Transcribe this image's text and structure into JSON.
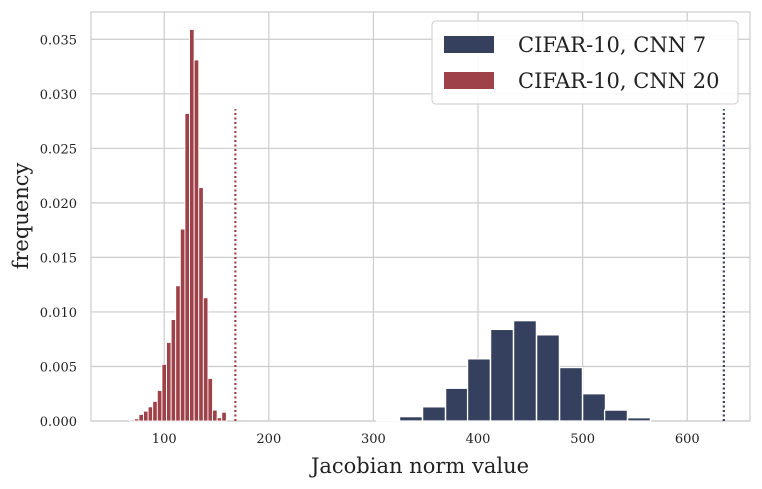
{
  "chart_data": {
    "type": "bar",
    "xlabel": "Jacobian norm value",
    "ylabel": "frequency",
    "xlim": [
      30,
      660
    ],
    "ylim": [
      0,
      0.0375
    ],
    "xticks": [
      100,
      200,
      300,
      400,
      500,
      600
    ],
    "yticks": [
      0.0,
      0.005,
      0.01,
      0.015,
      0.02,
      0.025,
      0.03,
      0.035
    ],
    "ytick_labels": [
      "0.000",
      "0.005",
      "0.010",
      "0.015",
      "0.020",
      "0.025",
      "0.030",
      "0.035"
    ],
    "grid": true,
    "legend_position": "top-right",
    "series": [
      {
        "name": "CIFAR-10, CNN 7",
        "color": "#34405e",
        "bin_width": 21.8,
        "bin_starts": [
          303,
          325,
          347,
          369,
          390,
          412,
          434,
          456,
          478,
          500,
          521,
          543
        ],
        "values": [
          0.0001,
          0.0004,
          0.0013,
          0.003,
          0.0057,
          0.0084,
          0.0092,
          0.0079,
          0.0049,
          0.0025,
          0.001,
          0.0003
        ],
        "dotted_line_x": 635
      },
      {
        "name": "CIFAR-10, CNN 20",
        "color": "#9e4149",
        "bin_width": 4.4,
        "bin_starts": [
          67,
          71.4,
          75.8,
          80.2,
          84.6,
          89,
          93.4,
          97.8,
          102.2,
          106.6,
          111,
          115.4,
          119.8,
          124.2,
          128.6,
          133,
          137.4,
          141.8,
          146.2,
          150.6,
          155
        ],
        "values": [
          0.0001,
          0.0002,
          0.0006,
          0.0009,
          0.0013,
          0.0018,
          0.0028,
          0.0052,
          0.0072,
          0.0093,
          0.0124,
          0.0176,
          0.0282,
          0.0359,
          0.0331,
          0.0214,
          0.0113,
          0.0039,
          0.001,
          0.0003,
          0.0008
        ],
        "dotted_line_x": 168
      }
    ]
  }
}
